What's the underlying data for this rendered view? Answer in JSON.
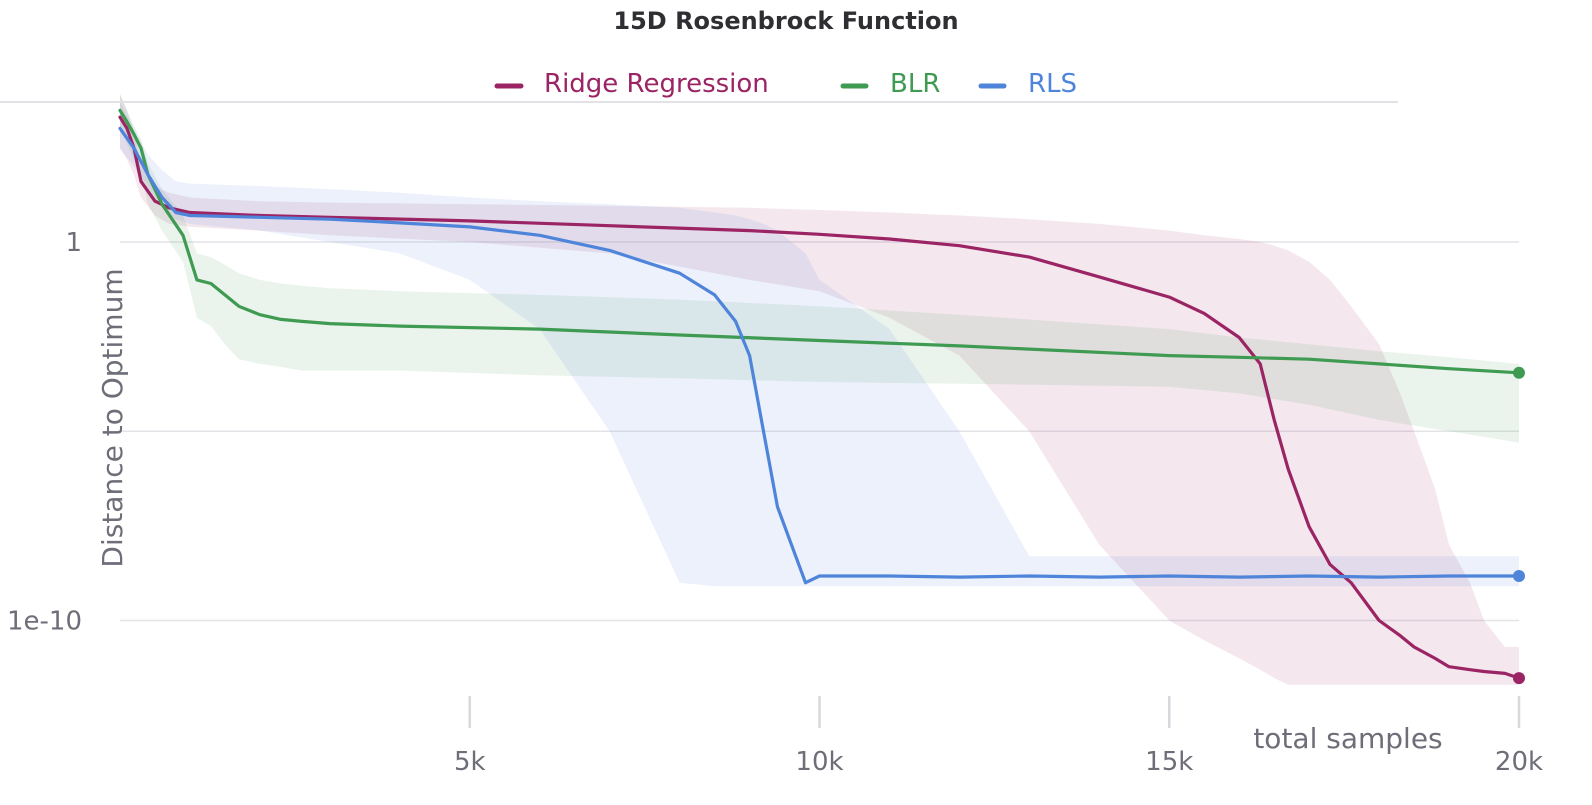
{
  "chart_data": {
    "type": "line",
    "title": "15D Rosenbrock Function",
    "xlabel": "total samples",
    "ylabel": "Distance to Optimum",
    "y_scale": "log",
    "xlim": [
      0,
      20000
    ],
    "ylim": [
      1e-13,
      100000
    ],
    "x_ticks": [
      {
        "value": 5000,
        "label": "5k"
      },
      {
        "value": 10000,
        "label": "10k"
      },
      {
        "value": 15000,
        "label": "15k"
      },
      {
        "value": 20000,
        "label": "20k"
      }
    ],
    "y_ticks": [
      {
        "value": 1,
        "label": "1"
      },
      {
        "value": 1e-05,
        "label": ""
      },
      {
        "value": 1e-10,
        "label": "1e-10"
      }
    ],
    "grid": "horizontal",
    "legend_position": "top-center",
    "series": [
      {
        "name": "Ridge Regression",
        "color": "#9b2464",
        "x": [
          0,
          100,
          200,
          300,
          500,
          700,
          1000,
          2000,
          3000,
          5000,
          7000,
          9000,
          10000,
          11000,
          12000,
          13000,
          14000,
          15000,
          15500,
          16000,
          16300,
          16500,
          16700,
          17000,
          17300,
          17600,
          18000,
          18300,
          18500,
          18800,
          19000,
          19300,
          19500,
          19800,
          20000
        ],
        "y": [
          2000,
          1000,
          300,
          40,
          12,
          8,
          6,
          5,
          4.5,
          3.6,
          2.7,
          2.0,
          1.6,
          1.2,
          0.8,
          0.4,
          0.12,
          0.035,
          0.013,
          0.003,
          0.0006,
          2e-05,
          1e-06,
          3e-08,
          3e-09,
          1e-09,
          1e-10,
          4e-11,
          2e-11,
          1e-11,
          6e-12,
          5e-12,
          4.5e-12,
          4e-12,
          3e-12
        ],
        "band_upper": [
          8000,
          3000,
          800,
          100,
          30,
          20,
          15,
          12,
          11,
          10,
          9,
          8,
          7,
          6,
          5,
          4,
          3,
          2,
          1.5,
          1.2,
          1,
          0.8,
          0.6,
          0.3,
          0.1,
          0.02,
          0.002,
          0.0001,
          1e-05,
          3e-07,
          1e-08,
          1e-09,
          1e-10,
          2e-11,
          2e-11
        ],
        "band_lower": [
          300,
          150,
          60,
          15,
          5,
          3,
          2.5,
          2,
          1.5,
          1.0,
          0.5,
          0.1,
          0.05,
          0.01,
          0.001,
          1e-05,
          1e-08,
          1e-10,
          3e-11,
          1e-11,
          5e-12,
          3e-12,
          2e-12,
          2e-12,
          2e-12,
          2e-12,
          2e-12,
          2e-12,
          2e-12,
          2e-12,
          2e-12,
          2e-12,
          2e-12,
          2e-12,
          2e-12
        ]
      },
      {
        "name": "BLR",
        "color": "#3f9a52",
        "x": [
          0,
          100,
          200,
          300,
          400,
          600,
          900,
          1100,
          1300,
          1500,
          1700,
          2000,
          2300,
          2600,
          3000,
          4000,
          6000,
          8000,
          10000,
          12000,
          15000,
          16000,
          17000,
          18000,
          19000,
          20000
        ],
        "y": [
          3000,
          1500,
          700,
          300,
          60,
          10,
          1.5,
          0.1,
          0.08,
          0.04,
          0.02,
          0.012,
          0.009,
          0.008,
          0.007,
          0.006,
          0.005,
          0.0035,
          0.0025,
          0.0018,
          0.001,
          0.0009,
          0.0008,
          0.0006,
          0.00045,
          0.00035
        ],
        "band_upper": [
          8000,
          3000,
          1200,
          500,
          120,
          25,
          5,
          0.5,
          0.4,
          0.25,
          0.15,
          0.1,
          0.08,
          0.07,
          0.06,
          0.05,
          0.04,
          0.03,
          0.02,
          0.012,
          0.005,
          0.003,
          0.002,
          0.0013,
          0.0009,
          0.0006
        ],
        "band_lower": [
          1000,
          400,
          150,
          60,
          10,
          2,
          0.3,
          0.01,
          0.006,
          0.002,
          0.0008,
          0.0006,
          0.0005,
          0.0004,
          0.0004,
          0.0004,
          0.0003,
          0.00025,
          0.0002,
          0.00018,
          0.00015,
          0.0001,
          5e-05,
          2e-05,
          1e-05,
          5e-06
        ]
      },
      {
        "name": "RLS",
        "color": "#4f84db",
        "x": [
          0,
          200,
          400,
          600,
          800,
          1000,
          2000,
          3000,
          4000,
          5000,
          6000,
          7000,
          8000,
          8500,
          8800,
          9000,
          9200,
          9400,
          9600,
          9800,
          10000,
          11000,
          12000,
          13000,
          14000,
          15000,
          16000,
          17000,
          18000,
          19000,
          20000
        ],
        "y": [
          1000,
          300,
          60,
          15,
          6,
          5,
          4.5,
          4,
          3.2,
          2.5,
          1.5,
          0.6,
          0.15,
          0.04,
          0.008,
          0.001,
          1e-05,
          1e-07,
          1e-08,
          1e-09,
          1.5e-09,
          1.5e-09,
          1.4e-09,
          1.5e-09,
          1.4e-09,
          1.5e-09,
          1.4e-09,
          1.5e-09,
          1.4e-09,
          1.5e-09,
          1.5e-09
        ],
        "band_upper": [
          5000,
          1000,
          200,
          80,
          40,
          35,
          30,
          25,
          20,
          15,
          12,
          10,
          8,
          6,
          5,
          4,
          3,
          2,
          1,
          0.5,
          0.1,
          0.005,
          1e-05,
          5e-09,
          5e-09,
          5e-09,
          5e-09,
          5e-09,
          5e-09,
          5e-09,
          5e-09
        ],
        "band_lower": [
          300,
          100,
          30,
          8,
          4,
          3,
          2,
          1,
          0.5,
          0.1,
          0.005,
          1e-05,
          1e-09,
          8e-10,
          8e-10,
          8e-10,
          8e-10,
          8e-10,
          8e-10,
          8e-10,
          8e-10,
          8e-10,
          8e-10,
          8e-10,
          8e-10,
          8e-10,
          8e-10,
          8e-10,
          8e-10,
          8e-10,
          8e-10
        ]
      }
    ]
  }
}
